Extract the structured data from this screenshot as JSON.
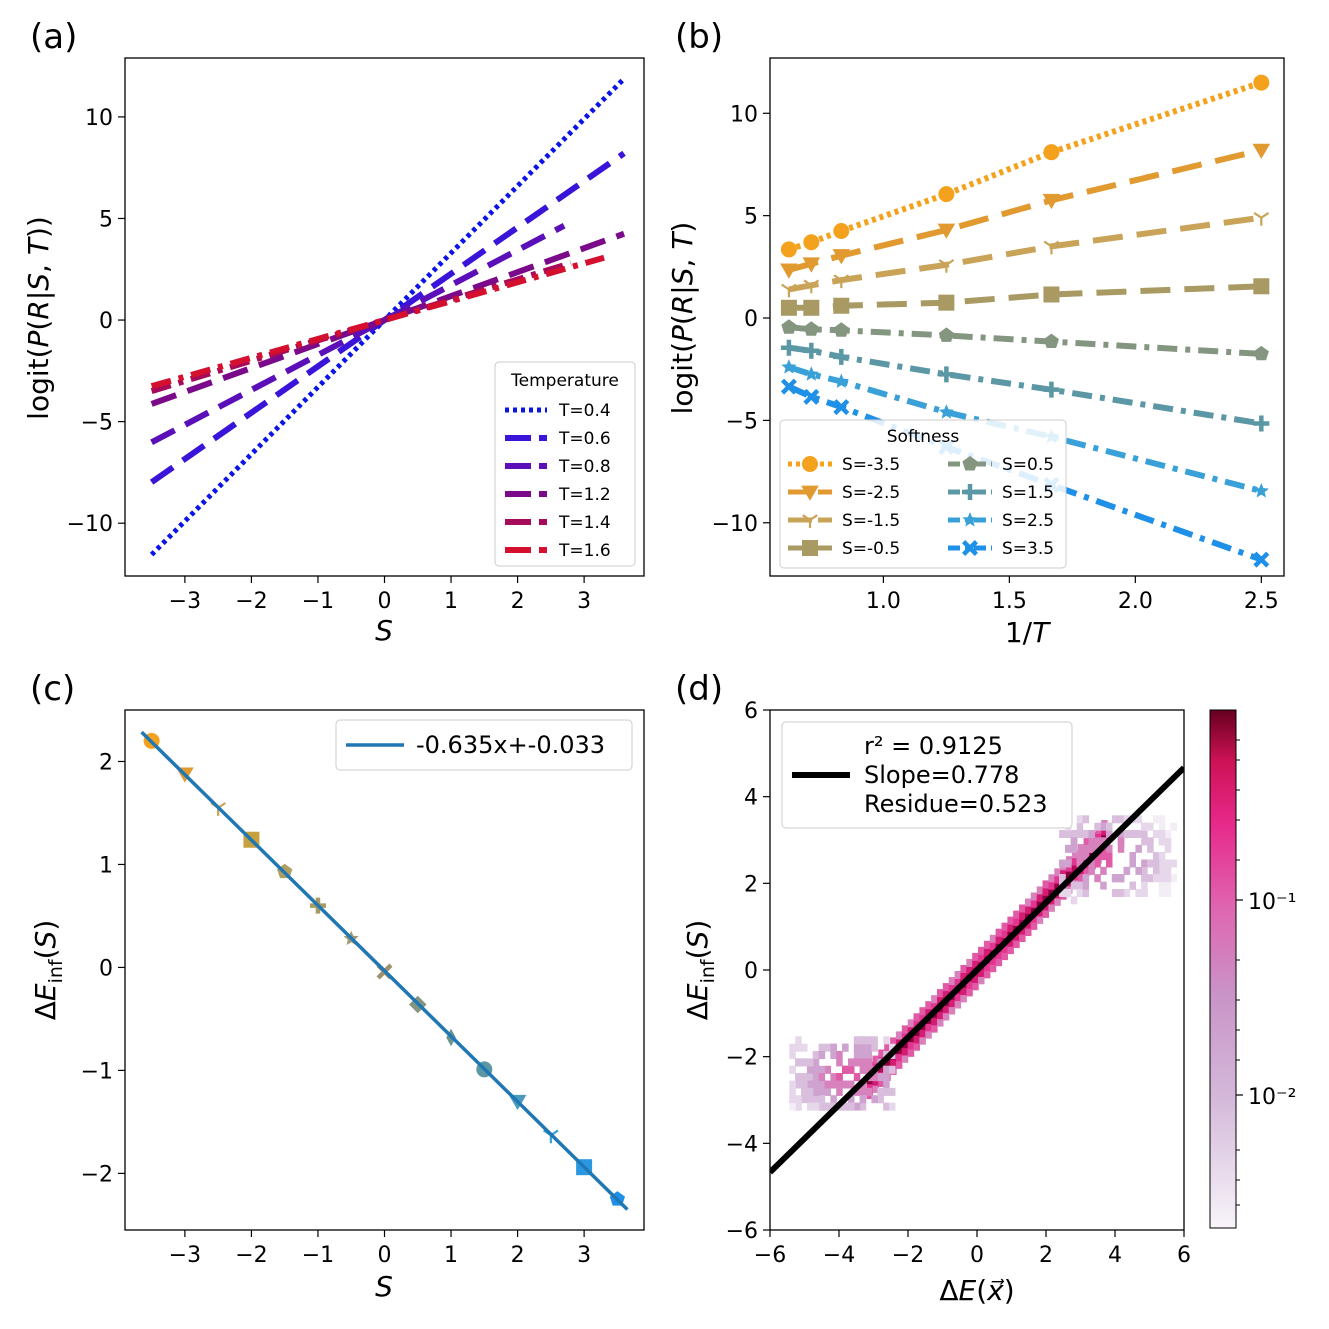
{
  "chart_data": [
    {
      "panel": "(a)",
      "type": "line",
      "xlabel": "S",
      "ylabel": "logit(P(R|S,T))",
      "xlim": [
        -3.9,
        3.9
      ],
      "ylim": [
        -12.6,
        12.9
      ],
      "xticks": [
        -3,
        -2,
        -1,
        0,
        1,
        2,
        3
      ],
      "yticks": [
        -10,
        -5,
        0,
        5,
        10
      ],
      "legend_title": "Temperature",
      "legend_position": "lower right",
      "series": [
        {
          "name": "T=0.4",
          "slope": 3.3,
          "x": [
            -3.5,
            3.6
          ],
          "color": "#0a14e6",
          "style": "dotted"
        },
        {
          "name": "T=0.6",
          "slope": 2.28,
          "x": [
            -3.5,
            3.6
          ],
          "color": "#3a14d8",
          "style": "dashed"
        },
        {
          "name": "T=0.8",
          "slope": 1.72,
          "x": [
            -3.5,
            2.7
          ],
          "color": "#5a0fb8",
          "style": "dashed"
        },
        {
          "name": "T=1.2",
          "slope": 1.18,
          "x": [
            -3.5,
            3.6
          ],
          "color": "#7a0a8a",
          "style": "dashed"
        },
        {
          "name": "T=1.4",
          "slope": 1.0,
          "x": [
            -3.5,
            2.8
          ],
          "color": "#a60a5a",
          "style": "dashdot"
        },
        {
          "name": "T=1.6",
          "slope": 0.93,
          "x": [
            -3.5,
            3.3
          ],
          "color": "#d4102e",
          "style": "dashdot"
        }
      ]
    },
    {
      "panel": "(b)",
      "type": "line",
      "xlabel": "1/T",
      "ylabel": "logit(P(R|S,T)",
      "xlim": [
        0.55,
        2.59
      ],
      "ylim": [
        -12.6,
        12.7
      ],
      "xticks": [
        1.0,
        1.5,
        2.0,
        2.5
      ],
      "xticklabels": [
        "1.0",
        "1.5",
        "2.0",
        "2.5"
      ],
      "yticks": [
        -10,
        -5,
        0,
        5,
        10
      ],
      "legend_title": "Softness",
      "legend_position": "lower left",
      "x": [
        0.625,
        0.714,
        0.833,
        1.25,
        1.667,
        2.5
      ],
      "series": [
        {
          "name": "S=-3.5",
          "values": [
            3.35,
            3.7,
            4.25,
            6.05,
            8.1,
            11.5
          ],
          "color": "#f4a21e",
          "marker": "circle",
          "style": "dotted"
        },
        {
          "name": "S=-2.5",
          "values": [
            2.35,
            2.65,
            3.05,
            4.3,
            5.75,
            8.2
          ],
          "color": "#e09a30",
          "marker": "tri-down",
          "style": "longdash"
        },
        {
          "name": "S=-1.5",
          "values": [
            1.4,
            1.6,
            1.85,
            2.6,
            3.5,
            4.9
          ],
          "color": "#c9a458",
          "marker": "tri",
          "style": "longdash"
        },
        {
          "name": "S=-0.5",
          "values": [
            0.5,
            0.5,
            0.6,
            0.75,
            1.15,
            1.55
          ],
          "color": "#a89a62",
          "marker": "square",
          "style": "longdash"
        },
        {
          "name": "S=0.5",
          "values": [
            -0.45,
            -0.55,
            -0.6,
            -0.85,
            -1.15,
            -1.75
          ],
          "color": "#849680",
          "marker": "pentagon",
          "style": "dashdot"
        },
        {
          "name": "S=1.5",
          "values": [
            -1.45,
            -1.6,
            -1.9,
            -2.75,
            -3.5,
            -5.15
          ],
          "color": "#5b97a4",
          "marker": "plus",
          "style": "dashdot"
        },
        {
          "name": "S=2.5",
          "values": [
            -2.4,
            -2.75,
            -3.1,
            -4.6,
            -5.8,
            -8.45
          ],
          "color": "#3aa0d8",
          "marker": "star",
          "style": "dashdot"
        },
        {
          "name": "S=3.5",
          "values": [
            -3.35,
            -3.85,
            -4.35,
            -6.3,
            -8.15,
            -11.8
          ],
          "color": "#1e90e8",
          "marker": "x",
          "style": "dashdot"
        }
      ]
    },
    {
      "panel": "(c)",
      "type": "scatter",
      "xlabel": "S",
      "ylabel": "ΔE_inf(S)",
      "xlim": [
        -3.9,
        3.9
      ],
      "ylim": [
        -2.55,
        2.5
      ],
      "xticks": [
        -3,
        -2,
        -1,
        0,
        1,
        2,
        3
      ],
      "yticks": [
        -2,
        -1,
        0,
        1,
        2
      ],
      "fit": {
        "label": "-0.635x+-0.033",
        "slope": -0.635,
        "intercept": -0.033,
        "x": [
          -3.65,
          3.65
        ],
        "color": "#1f77b4"
      },
      "legend_position": "upper right",
      "points": [
        {
          "x": -3.5,
          "y": 2.2,
          "marker": "circle",
          "color": "#f4a21e"
        },
        {
          "x": -3.0,
          "y": 1.88,
          "marker": "tri-down",
          "color": "#e09a30"
        },
        {
          "x": -2.5,
          "y": 1.55,
          "marker": "tri",
          "color": "#c9a458"
        },
        {
          "x": -2.0,
          "y": 1.24,
          "marker": "square",
          "color": "#c7a040"
        },
        {
          "x": -1.5,
          "y": 0.93,
          "marker": "pentagon",
          "color": "#b0a060"
        },
        {
          "x": -1.0,
          "y": 0.6,
          "marker": "plus",
          "color": "#a89a62"
        },
        {
          "x": -0.5,
          "y": 0.28,
          "marker": "star",
          "color": "#a49870"
        },
        {
          "x": 0.0,
          "y": -0.04,
          "marker": "x",
          "color": "#a0906e"
        },
        {
          "x": 0.5,
          "y": -0.36,
          "marker": "diamond",
          "color": "#849680"
        },
        {
          "x": 1.0,
          "y": -0.68,
          "marker": "thin-diamond",
          "color": "#6e9490"
        },
        {
          "x": 1.5,
          "y": -0.99,
          "marker": "circle",
          "color": "#5b97a4"
        },
        {
          "x": 2.0,
          "y": -1.3,
          "marker": "tri-down",
          "color": "#4a9ac0"
        },
        {
          "x": 2.5,
          "y": -1.63,
          "marker": "tri",
          "color": "#3aa0d8"
        },
        {
          "x": 3.0,
          "y": -1.94,
          "marker": "square",
          "color": "#2a98e0"
        },
        {
          "x": 3.5,
          "y": -2.25,
          "marker": "pentagon",
          "color": "#1e90e8"
        }
      ]
    },
    {
      "panel": "(d)",
      "type": "heatmap",
      "xlabel": "ΔE(x⃗)",
      "ylabel": "ΔE_inf(S)",
      "xlim": [
        -6,
        6
      ],
      "ylim": [
        -6,
        6
      ],
      "xticks": [
        -6,
        -4,
        -2,
        0,
        2,
        4,
        6
      ],
      "yticks": [
        -6,
        -4,
        -2,
        0,
        2,
        4,
        6
      ],
      "colorbar": {
        "scale": "log",
        "ticks": [
          "10⁻¹",
          "10⁻²"
        ],
        "cmap": "white-to-crimson"
      },
      "fit": {
        "slope": 0.778,
        "intercept": 0.0,
        "color": "#000000"
      },
      "legend": {
        "r2_label": "r² = 0.9125",
        "slope_label": "Slope=0.778",
        "residue_label": "Residue=0.523"
      },
      "density_description": "dense diagonal band from (-3,-2.5) to (3.5,2.7), diffuse clouds near (-4,-2.5) and (4,2.5)"
    }
  ],
  "labels": {
    "a": "(a)",
    "b": "(b)",
    "c": "(c)",
    "d": "(d)"
  }
}
